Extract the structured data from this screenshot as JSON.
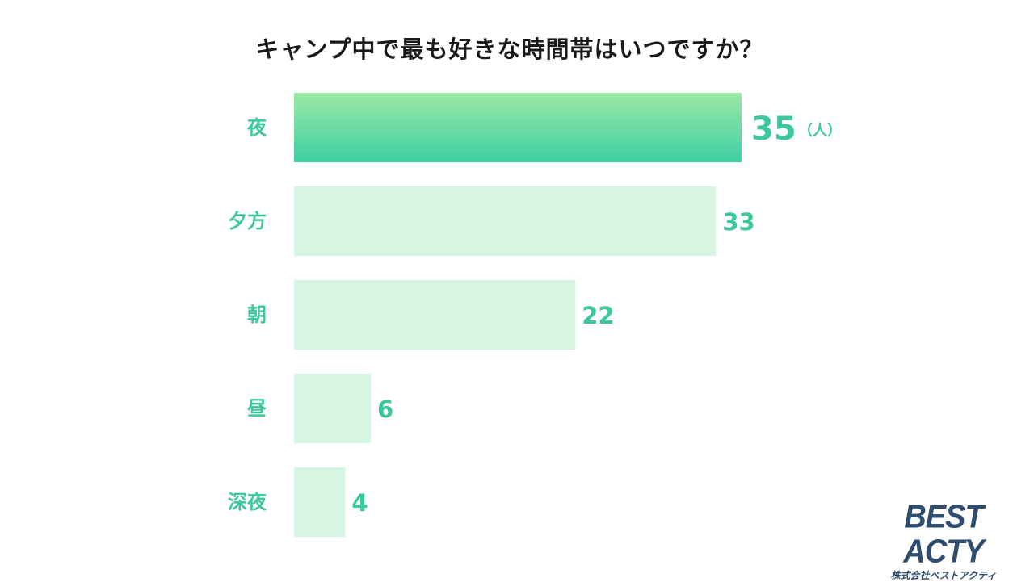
{
  "chart_data": {
    "type": "bar",
    "orientation": "horizontal",
    "title": "キャンプ中で最も好きな時間帯はいつですか？",
    "categories": [
      "夜",
      "夕方",
      "朝",
      "昼",
      "深夜"
    ],
    "values": [
      35,
      33,
      22,
      6,
      4
    ],
    "unit_label": "（人）",
    "highlight_index": 0,
    "colors": {
      "highlight_top": "#9be8a6",
      "highlight_bottom": "#3ecfa3",
      "bar": "#d6f5e3",
      "label": "#3dc79f",
      "title": "#1a1a1a"
    },
    "xlim": [
      0,
      35
    ],
    "grid": false,
    "legend": "none"
  },
  "logo": {
    "name": "BEST ACTY",
    "subtitle": "株式会社ベストアクティ",
    "color": "#2f4d6e"
  }
}
